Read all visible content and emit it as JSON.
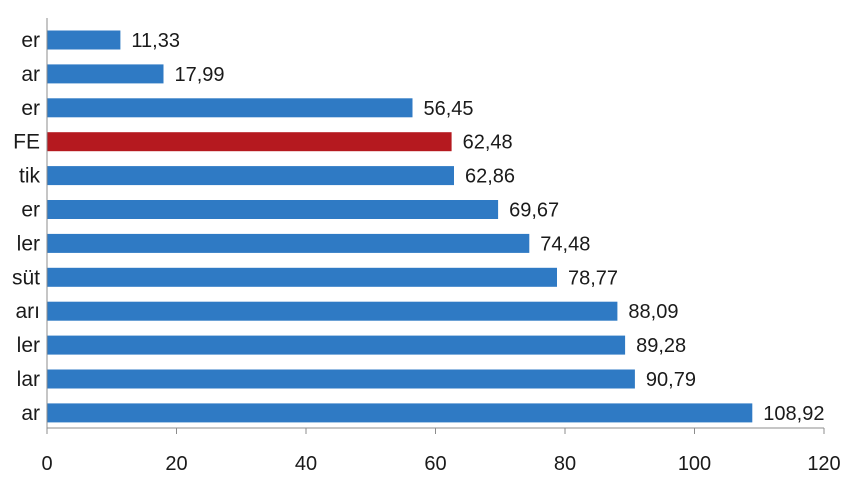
{
  "chart_data": {
    "type": "bar",
    "orientation": "horizontal",
    "categories": [
      "er",
      "ar",
      "er",
      "FE",
      "tik",
      "er",
      "ler",
      "süt",
      "arı",
      "ler",
      "lar",
      "ar"
    ],
    "values": [
      11.33,
      17.99,
      56.45,
      62.48,
      62.86,
      69.67,
      74.48,
      78.77,
      88.09,
      89.28,
      90.79,
      108.92
    ],
    "value_labels": [
      "11,33",
      "17,99",
      "56,45",
      "62,48",
      "62,86",
      "69,67",
      "74,48",
      "78,77",
      "88,09",
      "89,28",
      "90,79",
      "108,92"
    ],
    "highlight_index": 3,
    "xlim": [
      0,
      120
    ],
    "xticks": [
      0,
      20,
      40,
      60,
      80,
      100,
      120
    ],
    "xtick_labels": [
      "0",
      "20",
      "40",
      "60",
      "80",
      "100",
      "120"
    ],
    "title": "",
    "xlabel": "",
    "ylabel": "",
    "grid": false,
    "legend": "none",
    "colors": {
      "bar": "#2f7ac4",
      "highlight": "#b5191f",
      "axis": "#8c8c8c",
      "text": "#1a1a1a"
    }
  }
}
